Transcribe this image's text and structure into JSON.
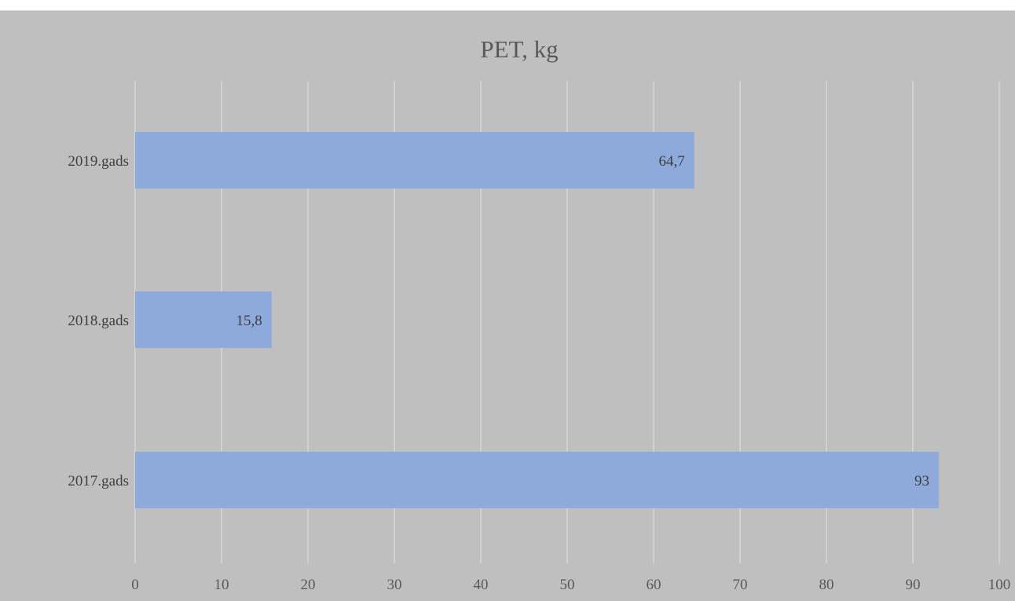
{
  "chart_data": {
    "type": "bar",
    "orientation": "horizontal",
    "title": "PET, kg",
    "categories": [
      "2019.gads",
      "2018.gads",
      "2017.gads"
    ],
    "values": [
      64.7,
      15.8,
      93
    ],
    "value_labels": [
      "64,7",
      "15,8",
      "93"
    ],
    "xlim": [
      0,
      100
    ],
    "xticks": [
      "0",
      "10",
      "20",
      "30",
      "40",
      "50",
      "60",
      "70",
      "80",
      "90",
      "100"
    ],
    "grid": "vertical",
    "legend": "none"
  },
  "colors": {
    "background": "#bfbfbf",
    "bar": "#8eaadb",
    "grid": "#d9d9d9",
    "title": "#595959",
    "tick_label": "#595959",
    "value_label": "#404040"
  }
}
